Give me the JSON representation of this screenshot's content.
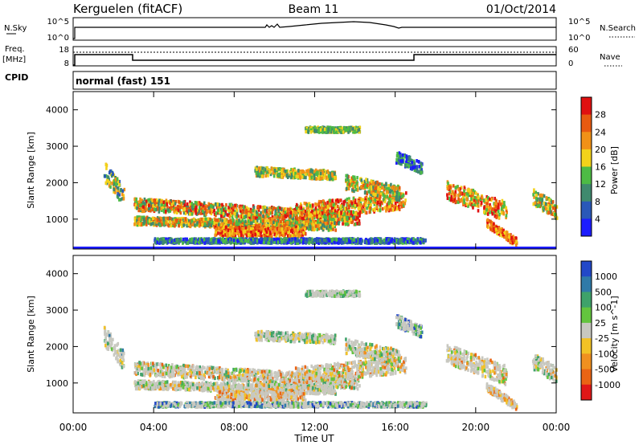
{
  "header": {
    "site": "Kerguelen (fitACF)",
    "beam": "Beam 11",
    "date": "01/Oct/2014"
  },
  "nsky_panel": {
    "left_label": "N.Sky",
    "left_ticks": [
      "10^5",
      "10^0"
    ],
    "right_ticks": [
      "10^5",
      "10^0"
    ],
    "right_label": "N.Search"
  },
  "freq_panel": {
    "left_label_1": "Freq.",
    "left_label_2": "[MHz]",
    "left_ticks": [
      "18",
      "8"
    ],
    "right_ticks": [
      "60",
      "0"
    ],
    "right_label": "Nave"
  },
  "cpid": {
    "label": "CPID",
    "value": "normal (fast) 151"
  },
  "chart_data": [
    {
      "type": "heatmap",
      "parameter": "Power",
      "ylabel": "Slant Range [km]",
      "ylim": [
        180,
        4500
      ],
      "yticks": [
        "1000",
        "2000",
        "3000",
        "4000"
      ],
      "colorbar_label": "Power [dB]",
      "colorbar_ticks": [
        "4",
        "8",
        "12",
        "16",
        "20",
        "24",
        "28"
      ],
      "colors": [
        "#1c1cff",
        "#2a58b8",
        "#3f8a6e",
        "#4dbb45",
        "#f2d21a",
        "#f19117",
        "#e85a10",
        "#e01010"
      ]
    },
    {
      "type": "heatmap",
      "parameter": "Velocity",
      "ylabel": "Slant Range [km]",
      "ylim": [
        180,
        4500
      ],
      "yticks": [
        "1000",
        "2000",
        "3000",
        "4000"
      ],
      "colorbar_label": "Velocity [m s^-1]",
      "colorbar_ticks": [
        "1000",
        "500",
        "100",
        "25",
        "-25",
        "-100",
        "-500",
        "-1000"
      ],
      "colors": [
        "#2248c8",
        "#2f7aa8",
        "#3ea26a",
        "#63c43e",
        "#c8c8c0",
        "#f2c226",
        "#f09020",
        "#ea6414",
        "#e01818"
      ]
    }
  ],
  "xaxis": {
    "ticks": [
      "00:00",
      "04:00",
      "08:00",
      "12:00",
      "16:00",
      "20:00",
      "00:00"
    ],
    "label": "Time UT"
  }
}
